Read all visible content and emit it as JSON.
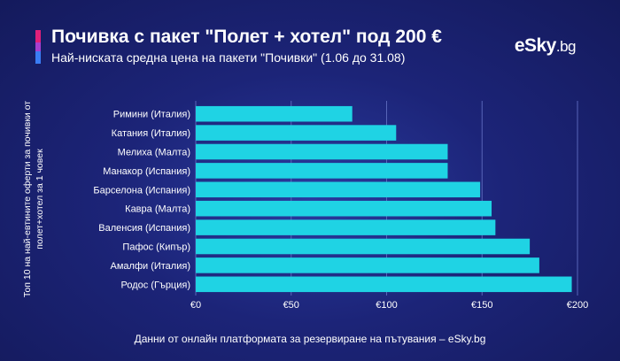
{
  "header": {
    "title": "Почивка с пакет \"Полет + хотел\" под 200 €",
    "subtitle": "Най-ниската средна цена на пакети \"Почивки\" (1.06 до 31.08)",
    "logo_main": "eSky",
    "logo_suffix": ".bg"
  },
  "footer": {
    "source": "Данни от онлайн платформата за резервиране на пътувания – eSky.bg"
  },
  "colors": {
    "bar": "#1fd3e4",
    "grid": "#5865b8",
    "text": "#ffffff"
  },
  "chart_data": {
    "type": "bar",
    "orientation": "horizontal",
    "title": "Почивка с пакет \"Полет + хотел\" под 200 €",
    "subtitle": "Най-ниската средна цена на пакети \"Почивки\" (1.06 до 31.08)",
    "ylabel": "Топ 10 на най-евтините оферти за почивки от полет+хотел за 1 човек",
    "categories": [
      "Римини (Италия)",
      "Катания (Италия)",
      "Мелиха (Малта)",
      "Манакор (Испания)",
      "Барселона (Испания)",
      "Кавра (Малта)",
      "Валенсия (Испания)",
      "Пафос (Кипър)",
      "Амалфи (Италия)",
      "Родос (Гърция)"
    ],
    "values": [
      82,
      105,
      132,
      132,
      149,
      155,
      157,
      175,
      180,
      197
    ],
    "xlim": [
      0,
      200
    ],
    "xticks": [
      0,
      50,
      100,
      150,
      200
    ],
    "xtick_labels": [
      "€0",
      "€50",
      "€100",
      "€150",
      "€200"
    ],
    "grid": true
  }
}
